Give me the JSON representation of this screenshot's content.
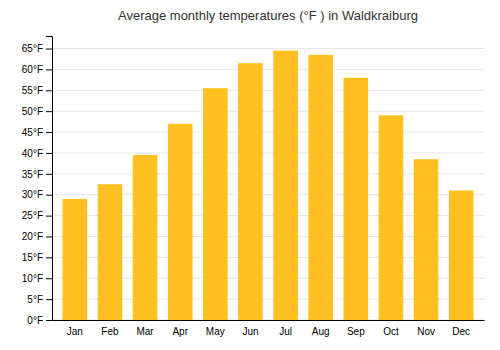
{
  "chart_data": {
    "type": "bar",
    "title": "Average monthly temperatures (°F ) in Waldkraiburg",
    "categories": [
      "Jan",
      "Feb",
      "Mar",
      "Apr",
      "May",
      "Jun",
      "Jul",
      "Aug",
      "Sep",
      "Oct",
      "Nov",
      "Dec"
    ],
    "values": [
      29,
      32.5,
      39.5,
      47,
      55.5,
      61.5,
      64.5,
      63.5,
      58,
      49,
      38.5,
      31
    ],
    "color": "#FFC020",
    "ylim": [
      0,
      68
    ],
    "yticks": [
      {
        "value": 0,
        "label": "0°F"
      },
      {
        "value": 5,
        "label": "5°F"
      },
      {
        "value": 10,
        "label": "10°F"
      },
      {
        "value": 15,
        "label": "15°F"
      },
      {
        "value": 20,
        "label": "20°F"
      },
      {
        "value": 25,
        "label": "25°F"
      },
      {
        "value": 30,
        "label": "30°F"
      },
      {
        "value": 35,
        "label": "35°F"
      },
      {
        "value": 40,
        "label": "40°F"
      },
      {
        "value": 45,
        "label": "45°F"
      },
      {
        "value": 50,
        "label": "50°F"
      },
      {
        "value": 55,
        "label": "55°F"
      },
      {
        "value": 60,
        "label": "60°F"
      },
      {
        "value": 65,
        "label": "65°F"
      }
    ],
    "grid": true
  }
}
